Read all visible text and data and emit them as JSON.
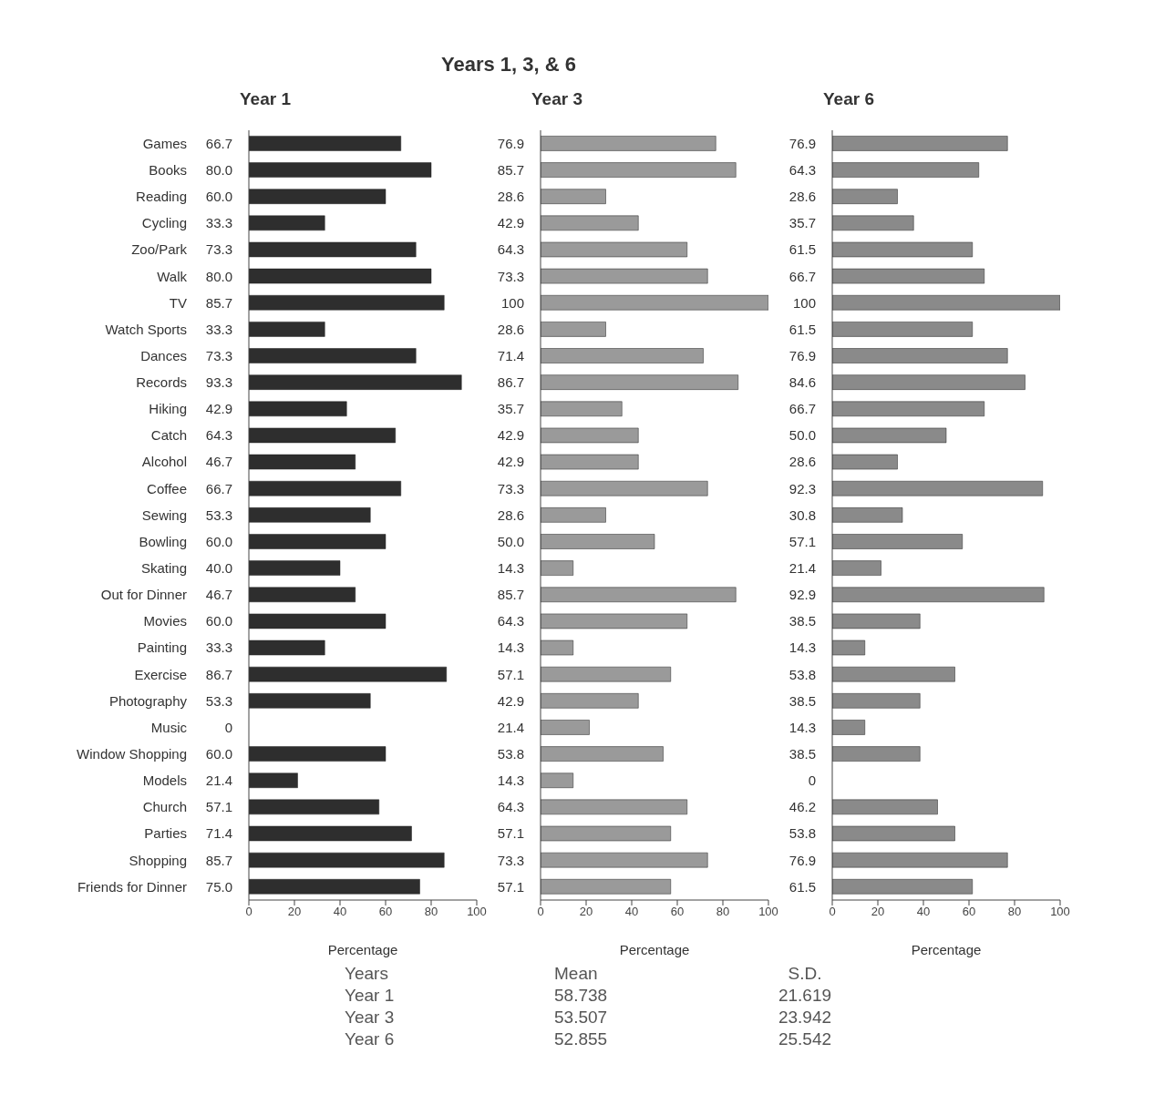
{
  "chart_data": [
    {
      "type": "other",
      "title": "Years 1, 3, & 6"
    },
    {
      "type": "bar",
      "orientation": "horizontal",
      "subtitle": "Year 1",
      "xlabel": "Percentage",
      "color": "#2e2e2e",
      "categories": [
        "Games",
        "Books",
        "Reading",
        "Cycling",
        "Zoo/Park",
        "Walk",
        "TV",
        "Watch Sports",
        "Dances",
        "Records",
        "Hiking",
        "Catch",
        "Alcohol",
        "Coffee",
        "Sewing",
        "Bowling",
        "Skating",
        "Out for Dinner",
        "Movies",
        "Painting",
        "Exercise",
        "Photography",
        "Music",
        "Window Shopping",
        "Models",
        "Church",
        "Parties",
        "Shopping",
        "Friends for Dinner"
      ],
      "values": [
        66.7,
        80.0,
        60.0,
        33.3,
        73.3,
        80.0,
        85.7,
        33.3,
        73.3,
        93.3,
        42.9,
        64.3,
        46.7,
        66.7,
        53.3,
        60.0,
        40.0,
        46.7,
        60.0,
        33.3,
        86.7,
        53.3,
        0,
        60.0,
        21.4,
        57.1,
        71.4,
        85.7,
        75.0
      ],
      "value_labels": [
        "66.7",
        "80.0",
        "60.0",
        "33.3",
        "73.3",
        "80.0",
        "85.7",
        "33.3",
        "73.3",
        "93.3",
        "42.9",
        "64.3",
        "46.7",
        "66.7",
        "53.3",
        "60.0",
        "40.0",
        "46.7",
        "60.0",
        "33.3",
        "86.7",
        "53.3",
        "0",
        "60.0",
        "21.4",
        "57.1",
        "71.4",
        "85.7",
        "75.0"
      ],
      "xlim": [
        0,
        100
      ],
      "xticks": [
        0,
        20,
        40,
        60,
        80,
        100
      ]
    },
    {
      "type": "bar",
      "orientation": "horizontal",
      "subtitle": "Year 3",
      "xlabel": "Percentage",
      "color": "#9a9a9a",
      "tick_labels": "x",
      "categories": [
        null,
        null,
        null,
        null,
        null,
        null,
        null,
        null,
        null,
        null,
        null,
        null,
        null,
        null,
        null,
        null,
        null,
        null,
        null,
        null,
        null,
        null,
        null,
        null,
        null,
        null,
        null,
        null,
        null
      ],
      "values": [
        76.9,
        85.7,
        28.6,
        42.9,
        64.3,
        73.3,
        100,
        28.6,
        71.4,
        86.7,
        35.7,
        42.9,
        42.9,
        73.3,
        28.6,
        50.0,
        14.3,
        85.7,
        64.3,
        14.3,
        57.1,
        42.9,
        21.4,
        53.8,
        14.3,
        64.3,
        57.1,
        73.3,
        57.1
      ],
      "value_labels": [
        "76.9",
        "85.7",
        "28.6",
        "42.9",
        "64.3",
        "73.3",
        "100",
        "28.6",
        "71.4",
        "86.7",
        "35.7",
        "42.9",
        "42.9",
        "73.3",
        "28.6",
        "50.0",
        "14.3",
        "85.7",
        "64.3",
        "14.3",
        "57.1",
        "42.9",
        "21.4",
        "53.8",
        "14.3",
        "64.3",
        "57.1",
        "73.3",
        "57.1"
      ],
      "xlim": [
        0,
        100
      ],
      "xticks": [
        0,
        20,
        40,
        60,
        80,
        100
      ]
    },
    {
      "type": "bar",
      "orientation": "horizontal",
      "subtitle": "Year 6",
      "xlabel": "Percentage",
      "color": "#8a8a8a",
      "tick_labels": "x",
      "categories": [
        null,
        null,
        null,
        null,
        null,
        null,
        null,
        null,
        null,
        null,
        null,
        null,
        null,
        null,
        null,
        null,
        null,
        null,
        null,
        null,
        null,
        null,
        null,
        null,
        null,
        null,
        null,
        null,
        null
      ],
      "values": [
        76.9,
        64.3,
        28.6,
        35.7,
        61.5,
        66.7,
        100,
        61.5,
        76.9,
        84.6,
        66.7,
        50.0,
        28.6,
        92.3,
        30.8,
        57.1,
        21.4,
        92.9,
        38.5,
        14.3,
        53.8,
        38.5,
        14.3,
        38.5,
        0,
        46.2,
        53.8,
        76.9,
        61.5
      ],
      "value_labels": [
        "76.9",
        "64.3",
        "28.6",
        "35.7",
        "61.5",
        "66.7",
        "100",
        "61.5",
        "76.9",
        "84.6",
        "66.7",
        "50.0",
        "28.6",
        "92.3",
        "30.8",
        "57.1",
        "21.4",
        "92.9",
        "38.5",
        "14.3",
        "53.8",
        "38.5",
        "14.3",
        "38.5",
        "0",
        "46.2",
        "53.8",
        "76.9",
        "61.5"
      ],
      "xlim": [
        0,
        100
      ],
      "xticks": [
        0,
        20,
        40,
        60,
        80,
        100
      ]
    },
    {
      "type": "other",
      "annotations": [
        "Years",
        "Mean",
        "S.D.",
        "Year 1",
        "58.738",
        "21.619",
        "Year 3",
        "53.507",
        "23.942",
        "Year 6",
        "52.855",
        "25.542"
      ]
    }
  ]
}
